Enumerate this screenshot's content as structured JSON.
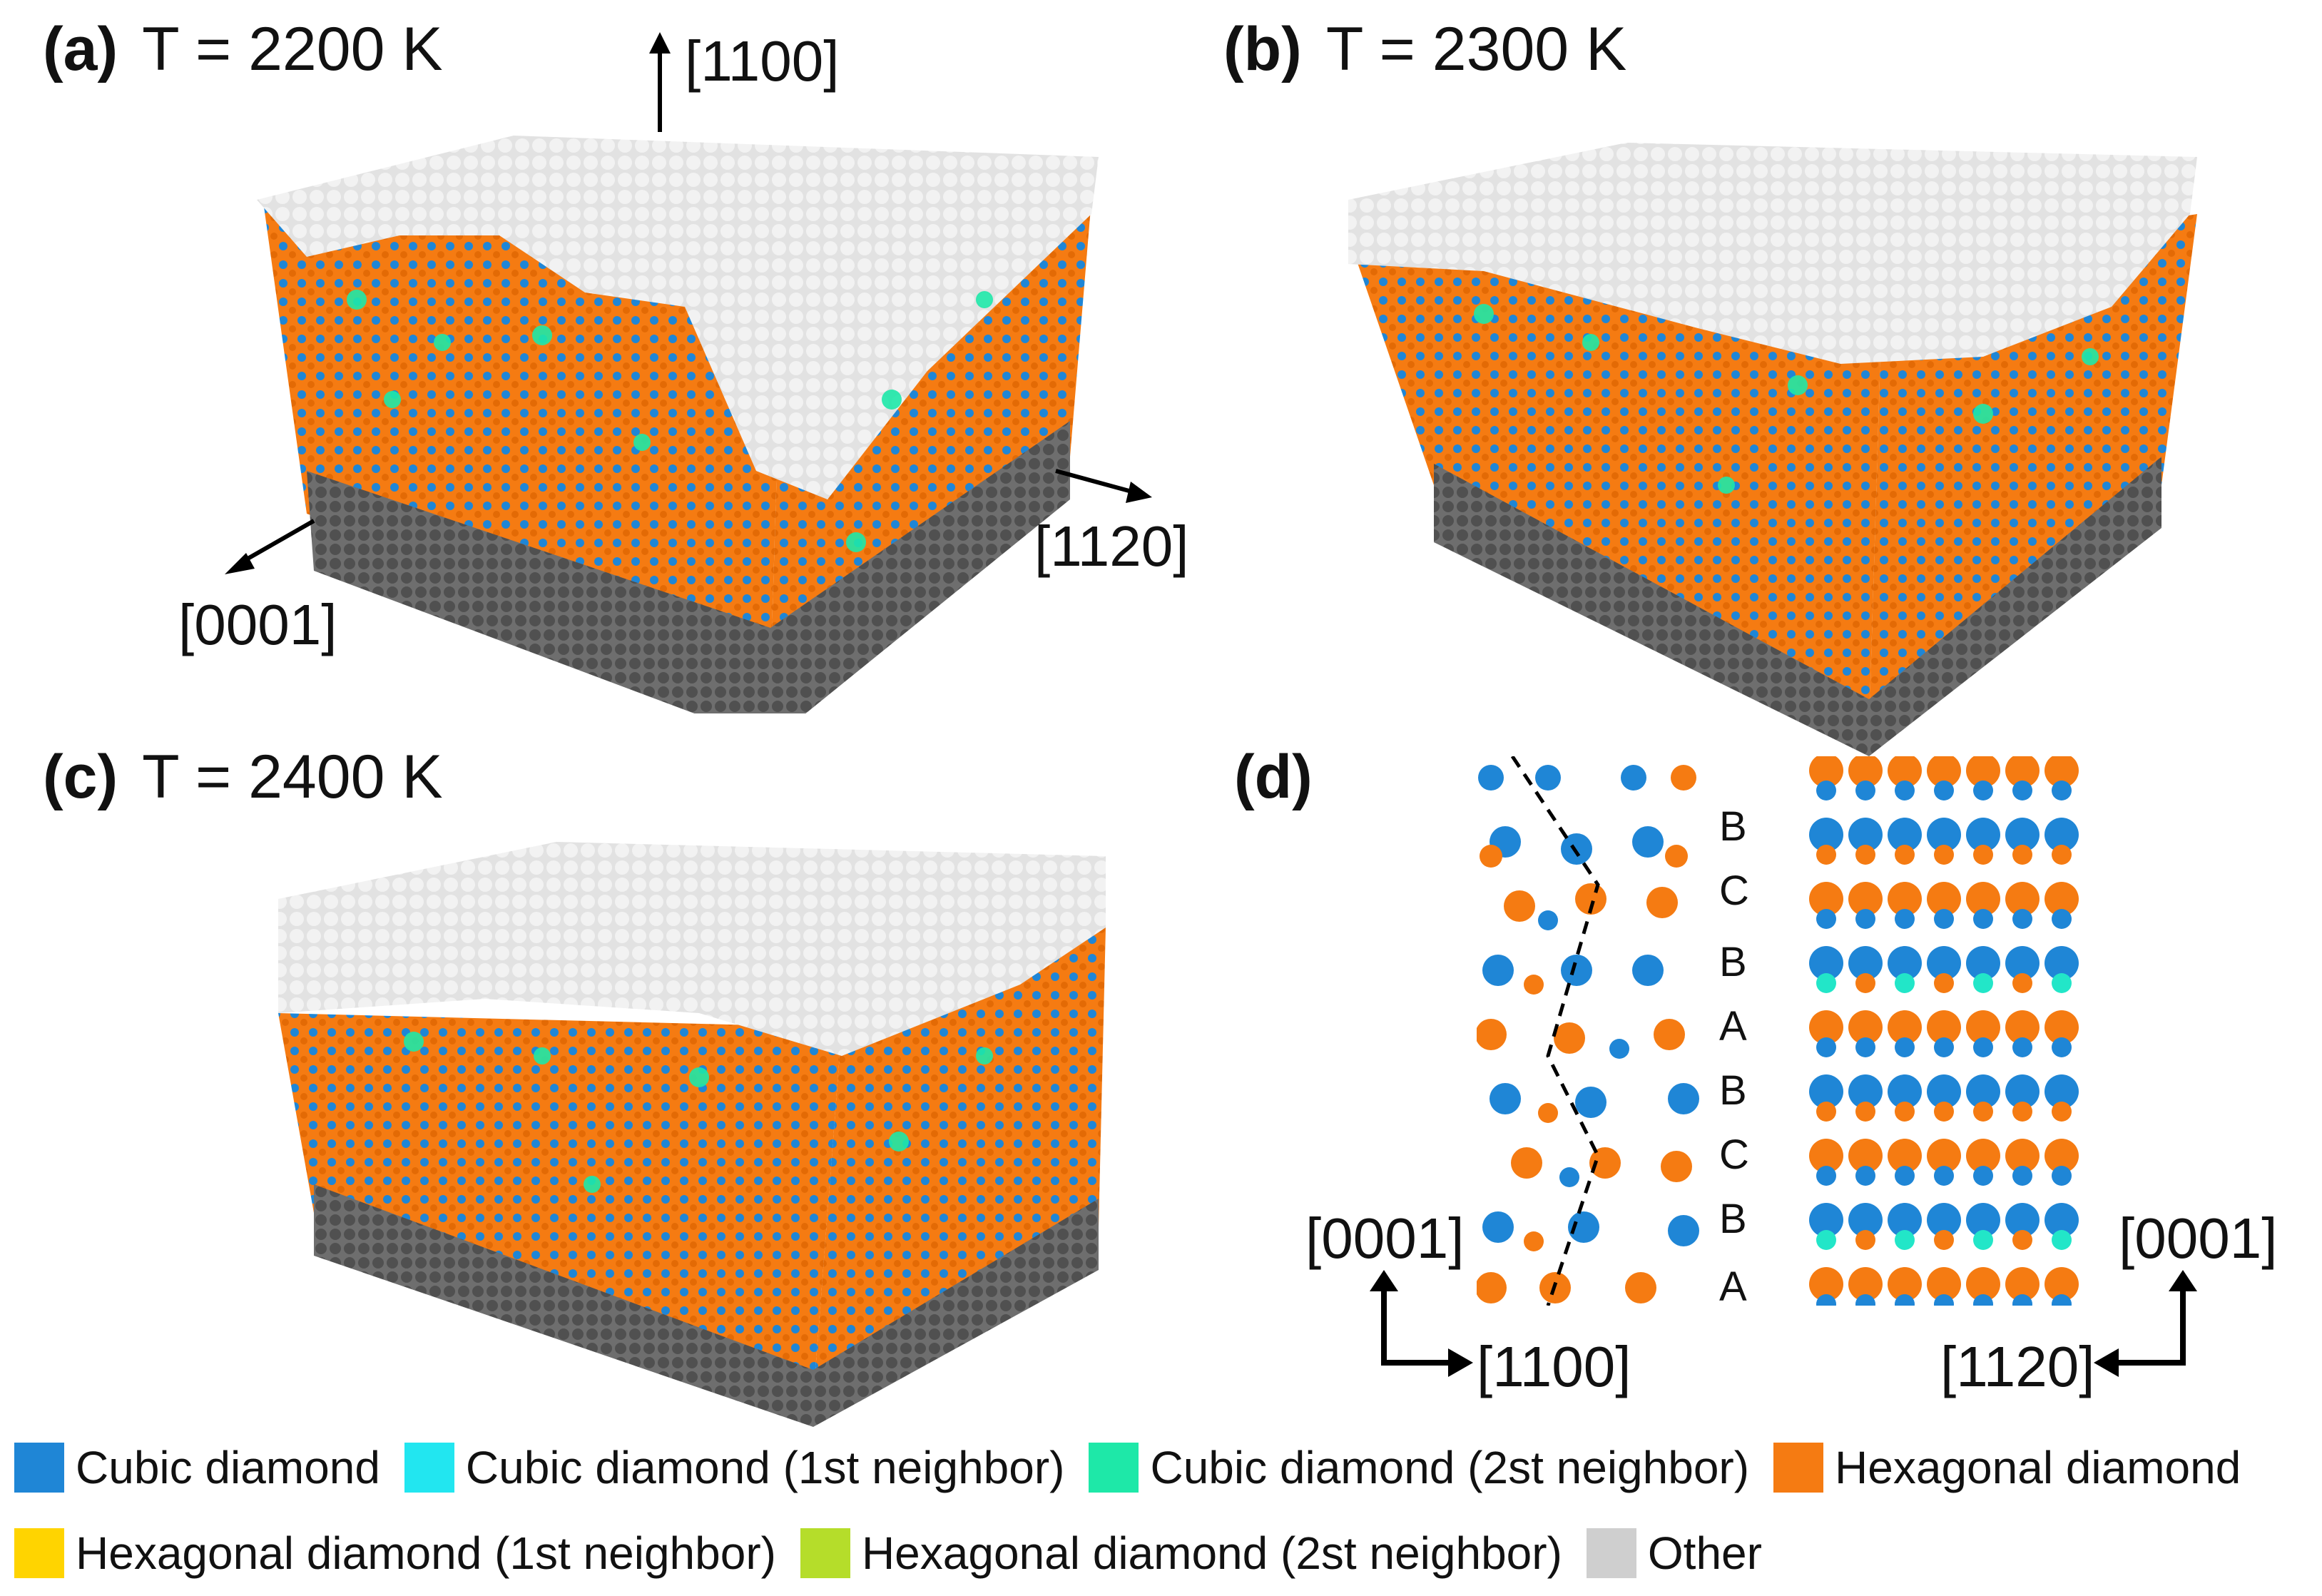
{
  "panels": [
    {
      "tag": "(a)",
      "temp": "T = 2200 K"
    },
    {
      "tag": "(b)",
      "temp": "T = 2300 K"
    },
    {
      "tag": "(c)",
      "temp": "T = 2400 K"
    },
    {
      "tag": "(d)"
    }
  ],
  "directions": {
    "a_up": "[1100]",
    "a_right": "[1120]",
    "a_left": "[0001]",
    "d_left_up": "[0001]",
    "d_left_right": "[1100]",
    "d_right_up": "[0001]",
    "d_right_left": "[1120]"
  },
  "stacking": [
    "B",
    "C",
    "B",
    "A",
    "B",
    "C",
    "B",
    "A"
  ],
  "legend": [
    {
      "label": "Cubic diamond",
      "color": "#1f86d6"
    },
    {
      "label": "Cubic diamond (1st neighbor)",
      "color": "#22e6f0"
    },
    {
      "label": "Cubic diamond (2st neighbor)",
      "color": "#1ee8a8"
    },
    {
      "label": "Hexagonal diamond",
      "color": "#f57b12"
    },
    {
      "label": "Hexagonal diamond (1st neighbor)",
      "color": "#ffd400"
    },
    {
      "label": "Hexagonal diamond (2st neighbor)",
      "color": "#b5dd2a"
    },
    {
      "label": "Other",
      "color": "#cfcfcf"
    }
  ]
}
